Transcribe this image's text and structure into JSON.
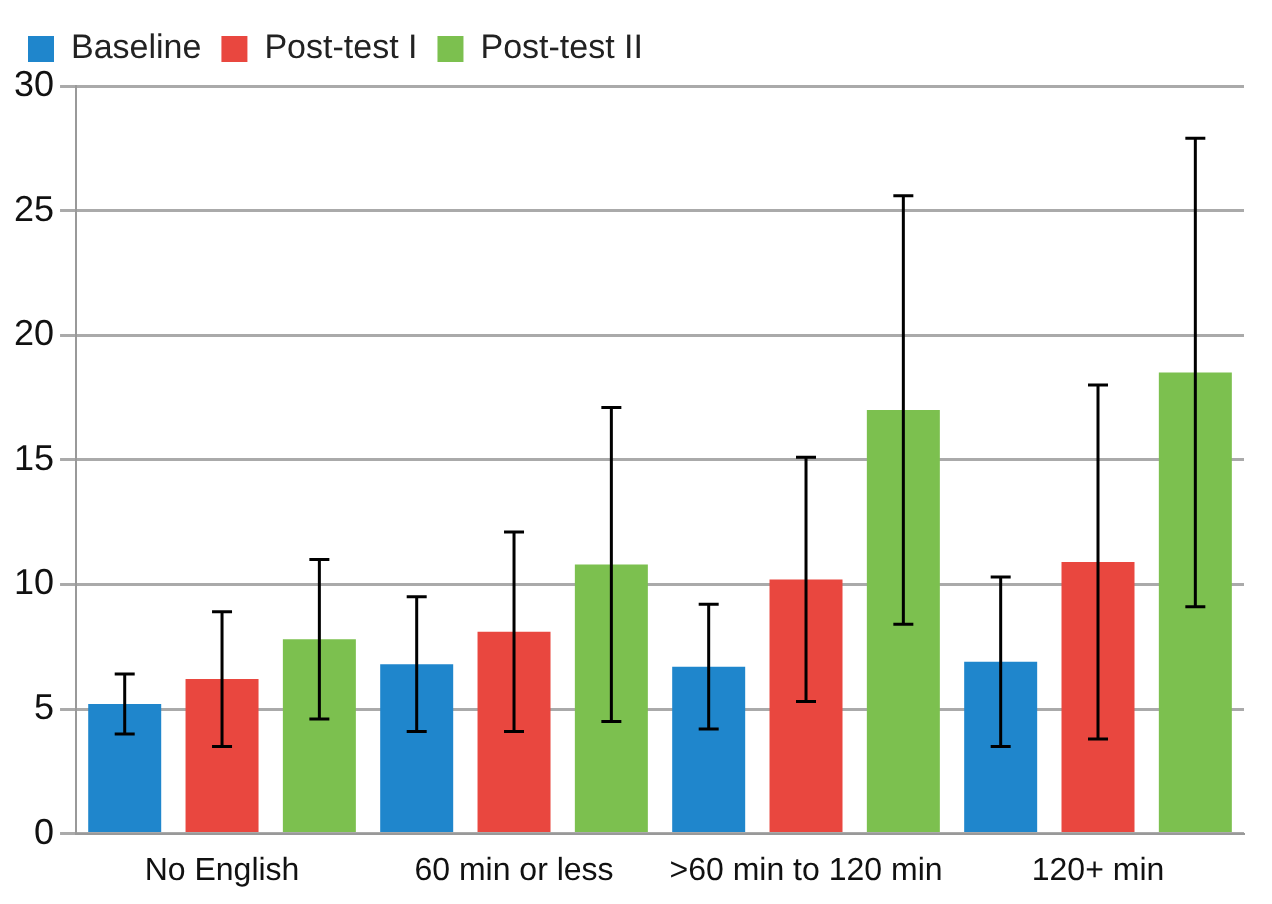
{
  "chart_data": {
    "type": "bar",
    "categories": [
      "No English",
      "60 min or less",
      ">60 min to 120 min",
      "120+ min"
    ],
    "series": [
      {
        "name": "Baseline",
        "color": "#1f86cc",
        "values": [
          5.2,
          6.8,
          6.7,
          6.9
        ],
        "errors": [
          [
            4.0,
            6.4
          ],
          [
            4.1,
            9.5
          ],
          [
            4.2,
            9.2
          ],
          [
            3.5,
            10.3
          ]
        ]
      },
      {
        "name": "Post-test I",
        "color": "#e9473f",
        "values": [
          6.2,
          8.1,
          10.2,
          10.9
        ],
        "errors": [
          [
            3.5,
            8.9
          ],
          [
            4.1,
            12.1
          ],
          [
            5.3,
            15.1
          ],
          [
            3.8,
            18.0
          ]
        ]
      },
      {
        "name": "Post-test II",
        "color": "#7cc04f",
        "values": [
          7.8,
          10.8,
          17.0,
          18.5
        ],
        "errors": [
          [
            4.6,
            11.0
          ],
          [
            4.5,
            17.1
          ],
          [
            8.4,
            25.6
          ],
          [
            9.1,
            27.9
          ]
        ]
      }
    ],
    "ylim": [
      0,
      30
    ],
    "yticks": [
      0,
      5,
      10,
      15,
      20,
      25,
      30
    ],
    "grid": "y",
    "legend": "top left"
  }
}
